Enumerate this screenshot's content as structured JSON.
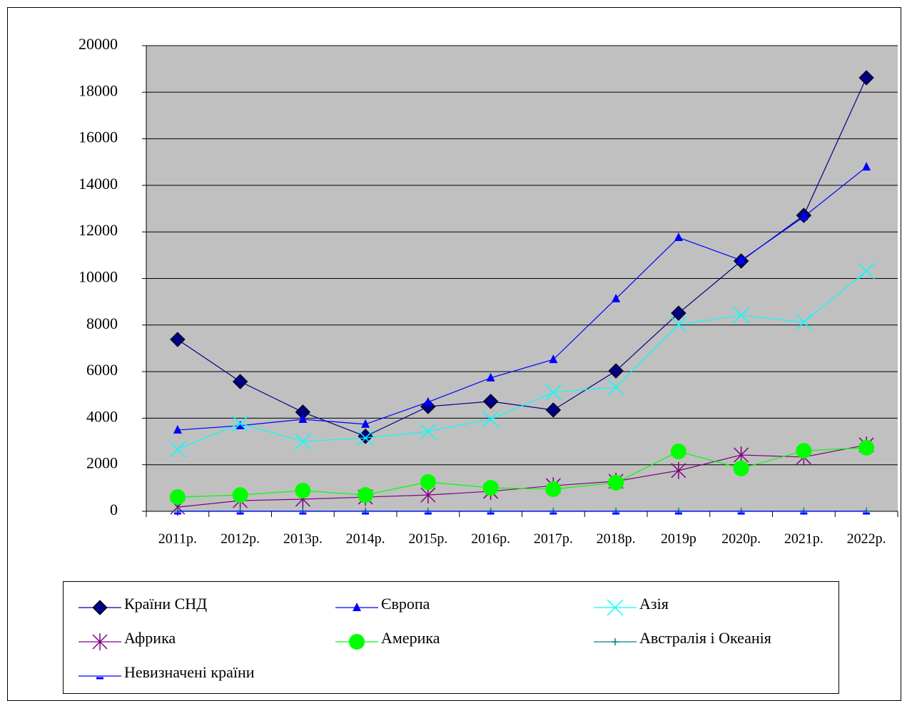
{
  "chart_data": {
    "type": "line",
    "categories": [
      "2011р.",
      "2012р.",
      "2013р.",
      "2014р.",
      "2015р.",
      "2016р.",
      "2017р.",
      "2018р.",
      "2019р",
      "2020р.",
      "2021р.",
      "2022р."
    ],
    "ylim": [
      0,
      20000
    ],
    "yticks": [
      0,
      2000,
      4000,
      6000,
      8000,
      10000,
      12000,
      14000,
      16000,
      18000,
      20000
    ],
    "grid": true,
    "legend": "bottom",
    "series": [
      {
        "name": "Країни СНД",
        "color": "#000080",
        "marker": "diamond",
        "values": [
          7380,
          5570,
          4260,
          3220,
          4500,
          4720,
          4350,
          6030,
          8510,
          10750,
          12710,
          18620
        ]
      },
      {
        "name": "Європа",
        "color": "#0000ff",
        "marker": "triangle",
        "values": [
          3490,
          3680,
          3950,
          3740,
          4690,
          5730,
          6520,
          9130,
          11760,
          10780,
          12650,
          14790
        ]
      },
      {
        "name": "Азія",
        "color": "#00ffff",
        "marker": "x",
        "values": [
          2660,
          3770,
          3000,
          3150,
          3430,
          3950,
          5110,
          5330,
          8020,
          8420,
          8120,
          10320
        ]
      },
      {
        "name": "Африка",
        "color": "#800080",
        "marker": "star",
        "values": [
          180,
          460,
          520,
          610,
          700,
          860,
          1100,
          1290,
          1750,
          2420,
          2330,
          2850
        ]
      },
      {
        "name": "Америка",
        "color": "#00ff00",
        "marker": "circle",
        "values": [
          610,
          700,
          890,
          700,
          1260,
          1010,
          950,
          1230,
          2570,
          1840,
          2600,
          2730
        ]
      },
      {
        "name": "Австралія і Океанія",
        "color": "#008080",
        "marker": "plus",
        "values": [
          10,
          10,
          10,
          10,
          10,
          10,
          10,
          10,
          10,
          10,
          10,
          10
        ]
      },
      {
        "name": "Невизначені країни",
        "color": "#0000ff",
        "marker": "dash",
        "values": [
          0,
          0,
          0,
          0,
          0,
          0,
          0,
          0,
          0,
          0,
          0,
          0
        ]
      }
    ]
  }
}
